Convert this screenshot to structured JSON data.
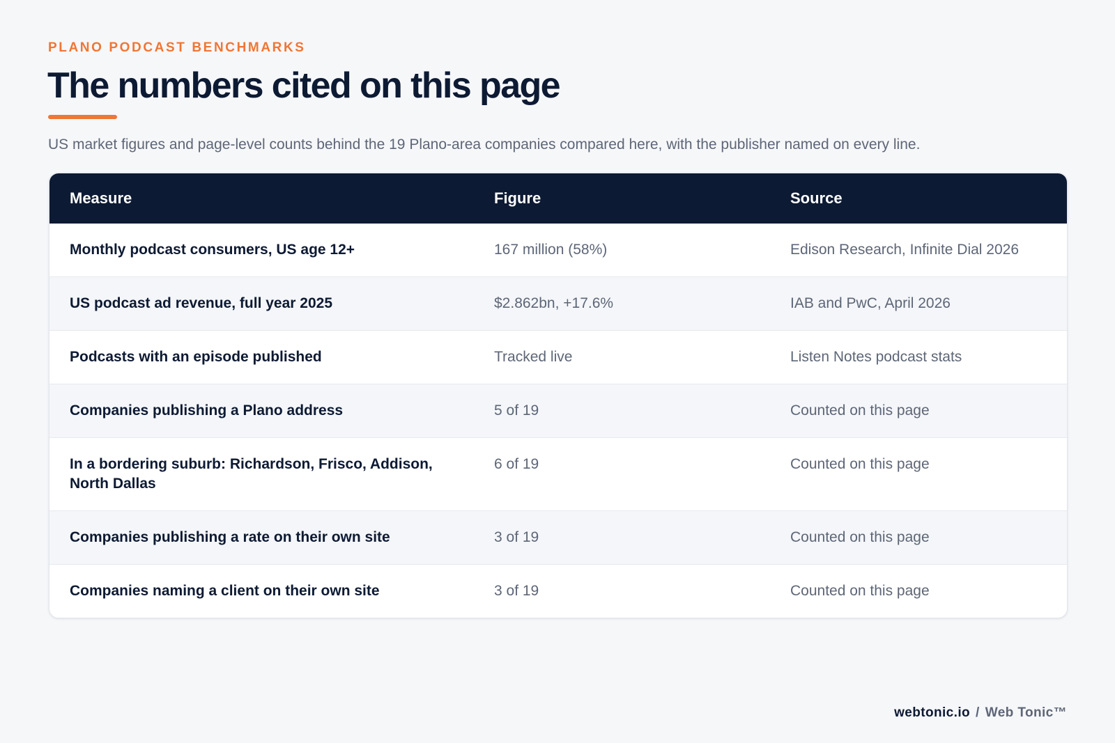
{
  "header": {
    "eyebrow": "PLANO PODCAST BENCHMARKS",
    "title": "The numbers cited on this page",
    "subtitle": "US market figures and page-level counts behind the 19 Plano-area companies compared here, with the publisher named on every line."
  },
  "table": {
    "columns": [
      "Measure",
      "Figure",
      "Source"
    ],
    "rows": [
      {
        "measure": "Monthly podcast consumers, US age 12+",
        "figure": "167 million (58%)",
        "source": "Edison Research, Infinite Dial 2026"
      },
      {
        "measure": "US podcast ad revenue, full year 2025",
        "figure": "$2.862bn, +17.6%",
        "source": "IAB and PwC, April 2026"
      },
      {
        "measure": "Podcasts with an episode published",
        "figure": "Tracked live",
        "source": "Listen Notes podcast stats"
      },
      {
        "measure": "Companies publishing a Plano address",
        "figure": "5 of 19",
        "source": "Counted on this page"
      },
      {
        "measure": "In a bordering suburb: Richardson, Frisco, Addison, North Dallas",
        "figure": "6 of 19",
        "source": "Counted on this page"
      },
      {
        "measure": "Companies publishing a rate on their own site",
        "figure": "3 of 19",
        "source": "Counted on this page"
      },
      {
        "measure": "Companies naming a client on their own site",
        "figure": "3 of 19",
        "source": "Counted on this page"
      }
    ]
  },
  "footer": {
    "domain": "webtonic.io",
    "separator": "/",
    "brand": "Web Tonic™"
  },
  "colors": {
    "accent": "#f07634",
    "navy": "#0d1a33",
    "muted_text": "#5d6677",
    "background": "#f6f7f9"
  }
}
